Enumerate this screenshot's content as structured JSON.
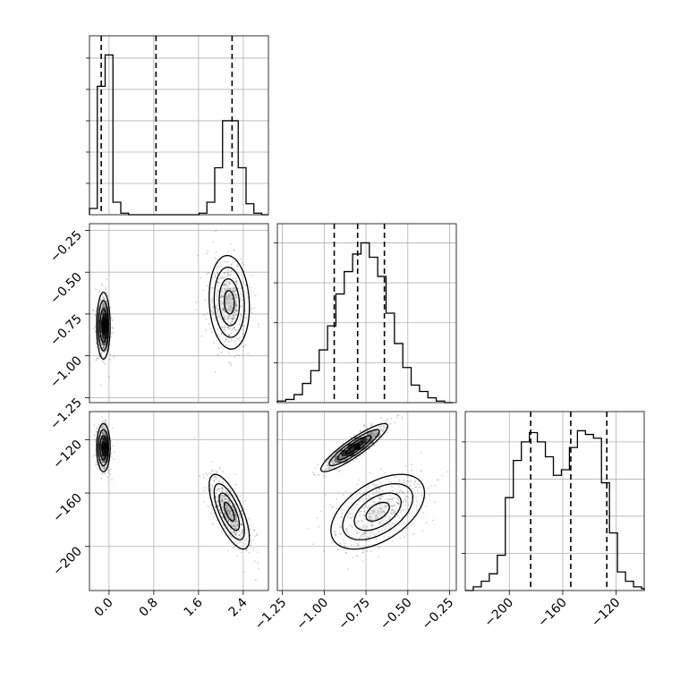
{
  "chart_data": {
    "type": "corner",
    "title": "",
    "grid": true,
    "colors": {
      "line": "#000000",
      "grid": "#b0b0b0",
      "points": "#000000"
    },
    "parameters": [
      {
        "range": [
          -0.35,
          2.85
        ],
        "ticks": [
          0.0,
          0.8,
          1.6,
          2.4
        ],
        "tick_labels": [
          "0.0",
          "0.8",
          "1.6",
          "2.4"
        ],
        "quantiles": [
          -0.14,
          0.84,
          2.2
        ],
        "histogram": {
          "bin_edges": [
            -0.35,
            -0.21,
            -0.07,
            0.07,
            0.21,
            0.35,
            0.49,
            0.63,
            0.77,
            0.91,
            1.05,
            1.19,
            1.33,
            1.47,
            1.61,
            1.75,
            1.89,
            2.03,
            2.17,
            2.31,
            2.45,
            2.59,
            2.73,
            2.85
          ],
          "counts": [
            0.04,
            0.82,
            1.02,
            0.08,
            0.01,
            0.0,
            0.0,
            0.0,
            0.0,
            0.0,
            0.0,
            0.0,
            0.0,
            0.0,
            0.01,
            0.08,
            0.3,
            0.6,
            0.6,
            0.3,
            0.07,
            0.01,
            0.0
          ]
        },
        "hist_yticks": [
          0.2,
          0.4,
          0.6,
          0.8,
          1.0
        ]
      },
      {
        "range": [
          -1.28,
          -0.21
        ],
        "ticks": [
          -1.25,
          -1.0,
          -0.75,
          -0.5,
          -0.25
        ],
        "tick_labels": [
          "−1.25",
          "−1.00",
          "−0.75",
          "−0.50",
          "−0.25"
        ],
        "quantiles": [
          -0.94,
          -0.8,
          -0.64
        ],
        "histogram": {
          "bin_edges": [
            -1.28,
            -1.23,
            -1.18,
            -1.13,
            -1.08,
            -1.03,
            -0.98,
            -0.93,
            -0.88,
            -0.83,
            -0.78,
            -0.73,
            -0.68,
            -0.63,
            -0.58,
            -0.53,
            -0.48,
            -0.43,
            -0.38,
            -0.33,
            -0.28,
            -0.23
          ],
          "counts": [
            0.01,
            0.02,
            0.05,
            0.12,
            0.2,
            0.33,
            0.48,
            0.68,
            0.82,
            0.93,
            1.0,
            0.91,
            0.79,
            0.56,
            0.37,
            0.22,
            0.11,
            0.07,
            0.03,
            0.01,
            0.0
          ]
        },
        "hist_yticks": [
          0.25,
          0.5,
          0.75,
          1.0
        ]
      },
      {
        "range": [
          -233,
          -99
        ],
        "ticks": [
          -200,
          -160,
          -120
        ],
        "tick_labels": [
          "−200",
          "−160",
          "−120"
        ],
        "quantiles": [
          -184,
          -154,
          -127
        ],
        "histogram": {
          "bin_edges": [
            -233,
            -227,
            -221,
            -215,
            -209,
            -203,
            -197,
            -191,
            -185,
            -179,
            -173,
            -167,
            -161,
            -155,
            -149,
            -143,
            -137,
            -131,
            -125,
            -119,
            -113,
            -107,
            -101,
            -99
          ],
          "counts": [
            0.0,
            0.02,
            0.05,
            0.09,
            0.19,
            0.5,
            0.7,
            0.8,
            0.85,
            0.8,
            0.72,
            0.62,
            0.65,
            0.77,
            0.86,
            0.84,
            0.82,
            0.58,
            0.31,
            0.1,
            0.05,
            0.02,
            0.01
          ]
        },
        "hist_yticks": [
          0.2,
          0.4,
          0.6,
          0.8
        ]
      }
    ],
    "joint_modes": [
      {
        "weight": 0.45,
        "mean": [
          -0.1,
          -0.82,
          -126
        ],
        "std": [
          0.06,
          0.1,
          9
        ],
        "corr": {
          "0-1": 0.0,
          "0-2": 0.0,
          "1-2": 0.9
        }
      },
      {
        "weight": 0.55,
        "mean": [
          2.15,
          -0.68,
          -174
        ],
        "std": [
          0.18,
          0.14,
          14
        ],
        "corr": {
          "0-1": -0.1,
          "0-2": -0.7,
          "1-2": 0.5
        }
      }
    ]
  }
}
